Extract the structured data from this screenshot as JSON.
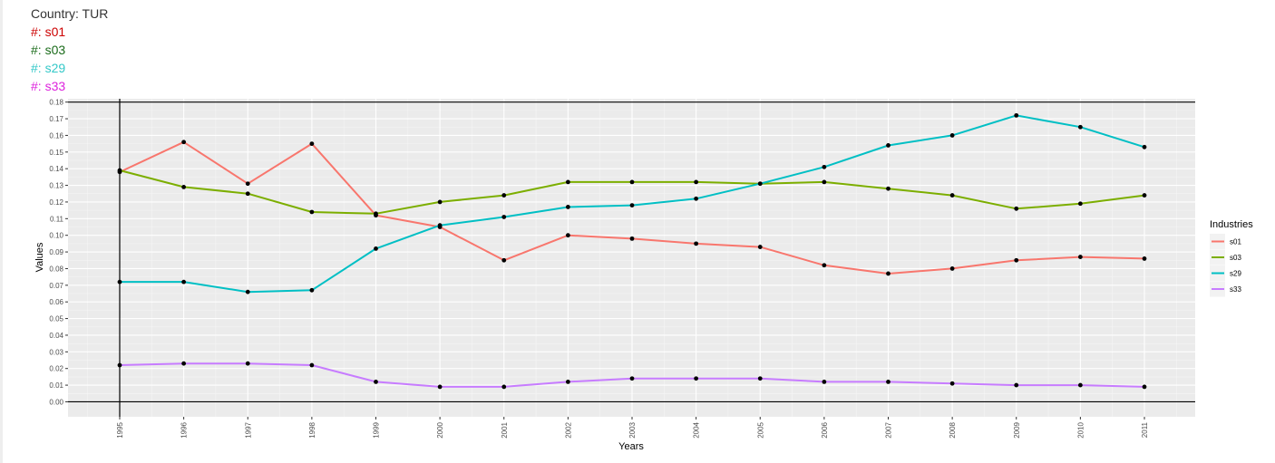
{
  "header": {
    "country": "Country: TUR",
    "items": [
      {
        "text": "#: s01",
        "color": "#cc0000"
      },
      {
        "text": "#: s03",
        "color": "#1a6b1a"
      },
      {
        "text": "#: s29",
        "color": "#33c8c8"
      },
      {
        "text": "#: s33",
        "color": "#dd22dd"
      }
    ]
  },
  "chart_data": {
    "type": "line",
    "xlabel": "Years",
    "ylabel": "Values",
    "x": [
      "1995",
      "1996",
      "1997",
      "1998",
      "1999",
      "2000",
      "2001",
      "2002",
      "2003",
      "2004",
      "2005",
      "2006",
      "2007",
      "2008",
      "2009",
      "2010",
      "2011"
    ],
    "ylim": [
      -0.009,
      0.182
    ],
    "yticks": [
      0.0,
      0.01,
      0.02,
      0.03,
      0.04,
      0.05,
      0.06,
      0.07,
      0.08,
      0.09,
      0.1,
      0.11,
      0.12,
      0.13,
      0.14,
      0.15,
      0.16,
      0.17,
      0.18
    ],
    "ytick_labels": [
      "0.00",
      "0.01",
      "0.02",
      "0.03",
      "0.04",
      "0.05",
      "0.06",
      "0.07",
      "0.08",
      "0.09",
      "0.10",
      "0.11",
      "0.12",
      "0.13",
      "0.14",
      "0.15",
      "0.16",
      "0.17",
      "0.18"
    ],
    "reference_lines": {
      "horizontal": [
        0,
        0.18
      ],
      "vertical": [
        "1995"
      ]
    },
    "grid": true,
    "legend_title": "Industries",
    "legend_position": "right",
    "series": [
      {
        "name": "s01",
        "color": "#F8766D",
        "values": [
          0.138,
          0.156,
          0.131,
          0.155,
          0.112,
          0.105,
          0.085,
          0.1,
          0.098,
          0.095,
          0.093,
          0.082,
          0.077,
          0.08,
          0.085,
          0.087,
          0.086
        ]
      },
      {
        "name": "s03",
        "color": "#7CAE00",
        "values": [
          0.139,
          0.129,
          0.125,
          0.114,
          0.113,
          0.12,
          0.124,
          0.132,
          0.132,
          0.132,
          0.131,
          0.132,
          0.128,
          0.124,
          0.116,
          0.119,
          0.124
        ]
      },
      {
        "name": "s29",
        "color": "#00BFC4",
        "values": [
          0.072,
          0.072,
          0.066,
          0.067,
          0.092,
          0.106,
          0.111,
          0.117,
          0.118,
          0.122,
          0.131,
          0.141,
          0.154,
          0.16,
          0.172,
          0.165,
          0.153
        ]
      },
      {
        "name": "s33",
        "color": "#C77CFF",
        "values": [
          0.022,
          0.023,
          0.023,
          0.022,
          0.012,
          0.009,
          0.009,
          0.012,
          0.014,
          0.014,
          0.014,
          0.012,
          0.012,
          0.011,
          0.01,
          0.01,
          0.009
        ]
      }
    ]
  }
}
